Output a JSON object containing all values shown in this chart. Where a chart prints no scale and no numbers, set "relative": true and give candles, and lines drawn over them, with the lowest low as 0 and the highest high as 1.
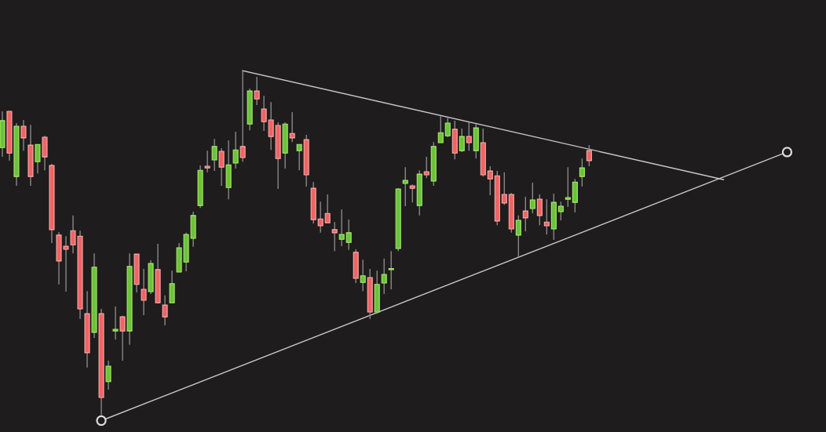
{
  "chart_data": {
    "type": "candlestick",
    "relative": true,
    "categories": [
      null,
      null,
      null,
      null,
      null,
      null,
      null,
      null,
      null,
      null,
      null,
      null,
      null,
      null,
      null,
      null,
      null,
      null,
      null,
      null,
      null,
      null,
      null,
      null,
      null,
      null,
      null,
      null,
      null,
      null,
      null,
      null,
      null,
      null,
      null,
      null,
      null,
      null,
      null,
      null,
      null,
      null,
      null,
      null,
      null,
      null,
      null,
      null,
      null,
      null,
      null,
      null,
      null,
      null,
      null,
      null,
      null,
      null,
      null,
      null,
      null,
      null,
      null,
      null,
      null,
      null,
      null,
      null,
      null,
      null,
      null,
      null,
      null,
      null,
      null,
      null,
      null,
      null,
      null,
      null,
      null,
      null,
      null,
      null,
      null,
      null,
      null,
      null,
      null,
      null,
      null,
      null,
      null,
      null,
      null,
      null,
      null,
      null,
      null,
      null,
      null,
      null,
      null,
      null,
      null,
      null,
      null,
      null,
      null,
      null,
      null,
      null
    ],
    "ohlc": [
      [
        0.777,
        0.882,
        0.75,
        0.855
      ],
      [
        0.882,
        0.884,
        0.739,
        0.761
      ],
      [
        0.693,
        0.848,
        0.666,
        0.839
      ],
      [
        0.839,
        0.857,
        0.768,
        0.805
      ],
      [
        0.784,
        0.843,
        0.666,
        0.693
      ],
      [
        0.736,
        0.786,
        0.702,
        0.786
      ],
      [
        0.807,
        0.811,
        0.711,
        0.75
      ],
      [
        0.725,
        0.73,
        0.5,
        0.539
      ],
      [
        0.523,
        0.532,
        0.38,
        0.448
      ],
      [
        0.491,
        0.52,
        0.359,
        0.482
      ],
      [
        0.536,
        0.58,
        0.47,
        0.495
      ],
      [
        0.52,
        0.536,
        0.28,
        0.309
      ],
      [
        0.295,
        0.361,
        0.139,
        0.182
      ],
      [
        0.241,
        0.47,
        0.225,
        0.43
      ],
      [
        0.295,
        0.309,
        0.0,
        0.052
      ],
      [
        0.098,
        0.159,
        0.075,
        0.143
      ],
      [
        0.245,
        0.316,
        0.22,
        0.25
      ],
      [
        0.286,
        0.289,
        0.159,
        0.245
      ],
      [
        0.245,
        0.47,
        0.205,
        0.432
      ],
      [
        0.468,
        0.468,
        0.357,
        0.38
      ],
      [
        0.366,
        0.425,
        0.291,
        0.334
      ],
      [
        0.359,
        0.45,
        0.352,
        0.441
      ],
      [
        0.423,
        0.498,
        0.325,
        0.327
      ],
      [
        0.32,
        0.348,
        0.261,
        0.286
      ],
      [
        0.327,
        0.42,
        0.327,
        0.382
      ],
      [
        0.416,
        0.5,
        0.416,
        0.486
      ],
      [
        0.445,
        0.53,
        0.418,
        0.525
      ],
      [
        0.514,
        0.591,
        0.489,
        0.58
      ],
      [
        0.609,
        0.725,
        0.602,
        0.711
      ],
      [
        0.723,
        0.768,
        0.705,
        0.718
      ],
      [
        0.741,
        0.802,
        0.709,
        0.78
      ],
      [
        0.766,
        0.775,
        0.666,
        0.72
      ],
      [
        0.661,
        0.798,
        0.627,
        0.727
      ],
      [
        0.732,
        0.823,
        0.716,
        0.77
      ],
      [
        0.78,
        1.0,
        0.736,
        0.748
      ],
      [
        0.845,
        0.948,
        0.827,
        0.941
      ],
      [
        0.941,
        0.982,
        0.9,
        0.918
      ],
      [
        0.889,
        0.927,
        0.825,
        0.852
      ],
      [
        0.857,
        0.909,
        0.77,
        0.809
      ],
      [
        0.841,
        0.85,
        0.657,
        0.745
      ],
      [
        0.761,
        0.85,
        0.716,
        0.845
      ],
      [
        0.818,
        0.88,
        0.793,
        0.805
      ],
      [
        0.768,
        0.786,
        0.711,
        0.786
      ],
      [
        0.8,
        0.814,
        0.664,
        0.698
      ],
      [
        0.659,
        0.677,
        0.557,
        0.568
      ],
      [
        0.57,
        0.62,
        0.53,
        0.55
      ],
      [
        0.586,
        0.641,
        0.559,
        0.559
      ],
      [
        0.539,
        0.561,
        0.477,
        0.53
      ],
      [
        0.511,
        0.598,
        0.491,
        0.525
      ],
      [
        0.502,
        0.568,
        0.48,
        0.53
      ],
      [
        0.473,
        0.482,
        0.384,
        0.398
      ],
      [
        0.386,
        0.452,
        0.361,
        0.405
      ],
      [
        0.4,
        0.425,
        0.28,
        0.3
      ],
      [
        0.3,
        0.42,
        0.295,
        0.38
      ],
      [
        0.384,
        0.455,
        0.352,
        0.409
      ],
      [
        0.423,
        0.477,
        0.366,
        0.425
      ],
      [
        0.484,
        0.659,
        0.477,
        0.657
      ],
      [
        0.673,
        0.72,
        0.607,
        0.682
      ],
      [
        0.666,
        0.67,
        0.618,
        0.659
      ],
      [
        0.609,
        0.711,
        0.58,
        0.7
      ],
      [
        0.707,
        0.75,
        0.689,
        0.698
      ],
      [
        0.68,
        0.793,
        0.666,
        0.78
      ],
      [
        0.791,
        0.868,
        0.791,
        0.82
      ],
      [
        0.811,
        0.868,
        0.807,
        0.848
      ],
      [
        0.83,
        0.855,
        0.743,
        0.761
      ],
      [
        0.768,
        0.832,
        0.764,
        0.809
      ],
      [
        0.809,
        0.85,
        0.768,
        0.791
      ],
      [
        0.768,
        0.845,
        0.745,
        0.834
      ],
      [
        0.791,
        0.832,
        0.693,
        0.698
      ],
      [
        0.709,
        0.723,
        0.639,
        0.686
      ],
      [
        0.695,
        0.709,
        0.552,
        0.564
      ],
      [
        0.641,
        0.705,
        0.611,
        0.616
      ],
      [
        0.641,
        0.645,
        0.53,
        0.541
      ],
      [
        0.523,
        0.58,
        0.459,
        0.566
      ],
      [
        0.593,
        0.634,
        0.534,
        0.573
      ],
      [
        0.6,
        0.675,
        0.586,
        0.625
      ],
      [
        0.627,
        0.641,
        0.552,
        0.58
      ],
      [
        0.561,
        0.627,
        0.525,
        0.55
      ],
      [
        0.541,
        0.643,
        0.509,
        0.618
      ],
      [
        0.591,
        0.62,
        0.566,
        0.607
      ],
      [
        0.627,
        0.72,
        0.605,
        0.632
      ],
      [
        0.618,
        0.686,
        0.589,
        0.677
      ],
      [
        0.693,
        0.745,
        0.664,
        0.718
      ],
      [
        0.768,
        0.784,
        0.723,
        0.739
      ],
      null,
      null,
      null,
      null,
      null,
      null,
      null,
      null,
      null,
      null,
      null,
      null,
      null,
      null,
      null,
      null,
      null,
      null,
      null,
      null,
      null,
      null,
      null,
      null,
      null,
      null,
      null,
      null
    ],
    "series": [
      {
        "type": "line",
        "color": "#c8c8c8",
        "marker": "none",
        "values": [
          null,
          null,
          null,
          null,
          null,
          null,
          null,
          null,
          null,
          null,
          null,
          null,
          null,
          null,
          null,
          null,
          null,
          null,
          null,
          null,
          null,
          null,
          null,
          null,
          null,
          null,
          null,
          null,
          null,
          null,
          null,
          null,
          null,
          null,
          1.0,
          null,
          null,
          null,
          null,
          null,
          null,
          null,
          null,
          null,
          null,
          null,
          null,
          null,
          null,
          null,
          null,
          null,
          null,
          null,
          null,
          null,
          null,
          null,
          null,
          null,
          null,
          null,
          null,
          null,
          null,
          null,
          null,
          null,
          null,
          null,
          null,
          null,
          null,
          null,
          null,
          null,
          null,
          null,
          null,
          null,
          null,
          null,
          null,
          null,
          null,
          null,
          null,
          null,
          null,
          null,
          null,
          null,
          null,
          null,
          null,
          null,
          null,
          null,
          null,
          null,
          null,
          null,
          0.684,
          null,
          null,
          null,
          null,
          null,
          null,
          null,
          null,
          null
        ]
      },
      {
        "type": "line",
        "color": "#c8c8c8",
        "marker": "circle",
        "values": [
          null,
          null,
          null,
          null,
          null,
          null,
          null,
          null,
          null,
          null,
          null,
          null,
          null,
          null,
          -0.015,
          null,
          null,
          null,
          null,
          null,
          null,
          null,
          null,
          null,
          null,
          null,
          null,
          null,
          null,
          null,
          null,
          null,
          null,
          null,
          null,
          null,
          null,
          null,
          null,
          null,
          null,
          null,
          null,
          null,
          null,
          null,
          null,
          null,
          null,
          null,
          null,
          null,
          null,
          null,
          null,
          null,
          null,
          null,
          null,
          null,
          null,
          null,
          null,
          null,
          null,
          null,
          null,
          null,
          null,
          null,
          null,
          null,
          null,
          null,
          null,
          null,
          null,
          null,
          null,
          null,
          null,
          null,
          null,
          null,
          null,
          null,
          null,
          null,
          null,
          null,
          null,
          null,
          null,
          null,
          null,
          null,
          null,
          null,
          null,
          null,
          null,
          null,
          null,
          null,
          null,
          null,
          null,
          null,
          null,
          null,
          null,
          0.764
        ]
      }
    ]
  }
}
